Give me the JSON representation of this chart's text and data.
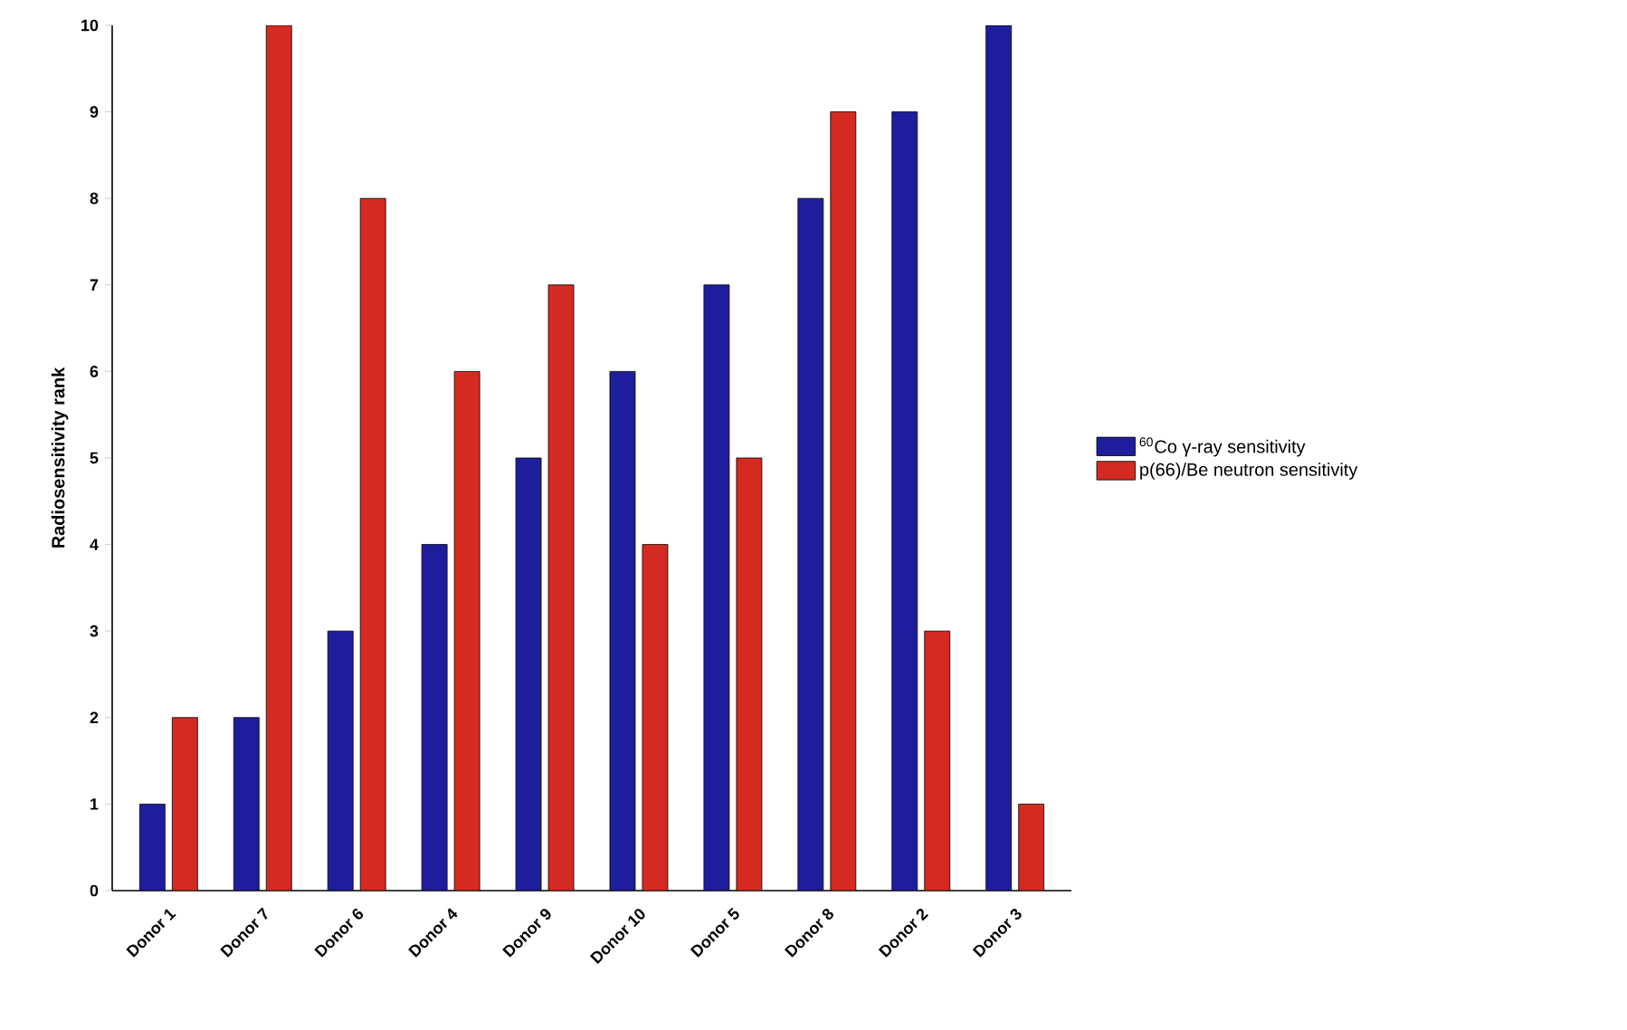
{
  "chart_data": {
    "type": "bar",
    "ylabel": "Radiosensitivity rank",
    "categories": [
      "Donor 1",
      "Donor 7",
      "Donor 6",
      "Donor 4",
      "Donor 9",
      "Donor 10",
      "Donor 5",
      "Donor 8",
      "Donor 2",
      "Donor 3"
    ],
    "series": [
      {
        "name": "$^{60}$Co γ-ray sensitivity",
        "color": "#1e1e9c",
        "values": [
          1,
          2,
          3,
          4,
          5,
          6,
          7,
          8,
          9,
          10
        ]
      },
      {
        "name": "p(66)/Be neutron sensitivity",
        "color": "#d42a22",
        "values": [
          2,
          10,
          8,
          6,
          7,
          4,
          5,
          9,
          3,
          1
        ]
      }
    ],
    "ylim": [
      0,
      10
    ],
    "yticks": [
      0,
      1,
      2,
      3,
      4,
      5,
      6,
      7,
      8,
      9,
      10
    ],
    "legend": "right",
    "grid": false
  }
}
